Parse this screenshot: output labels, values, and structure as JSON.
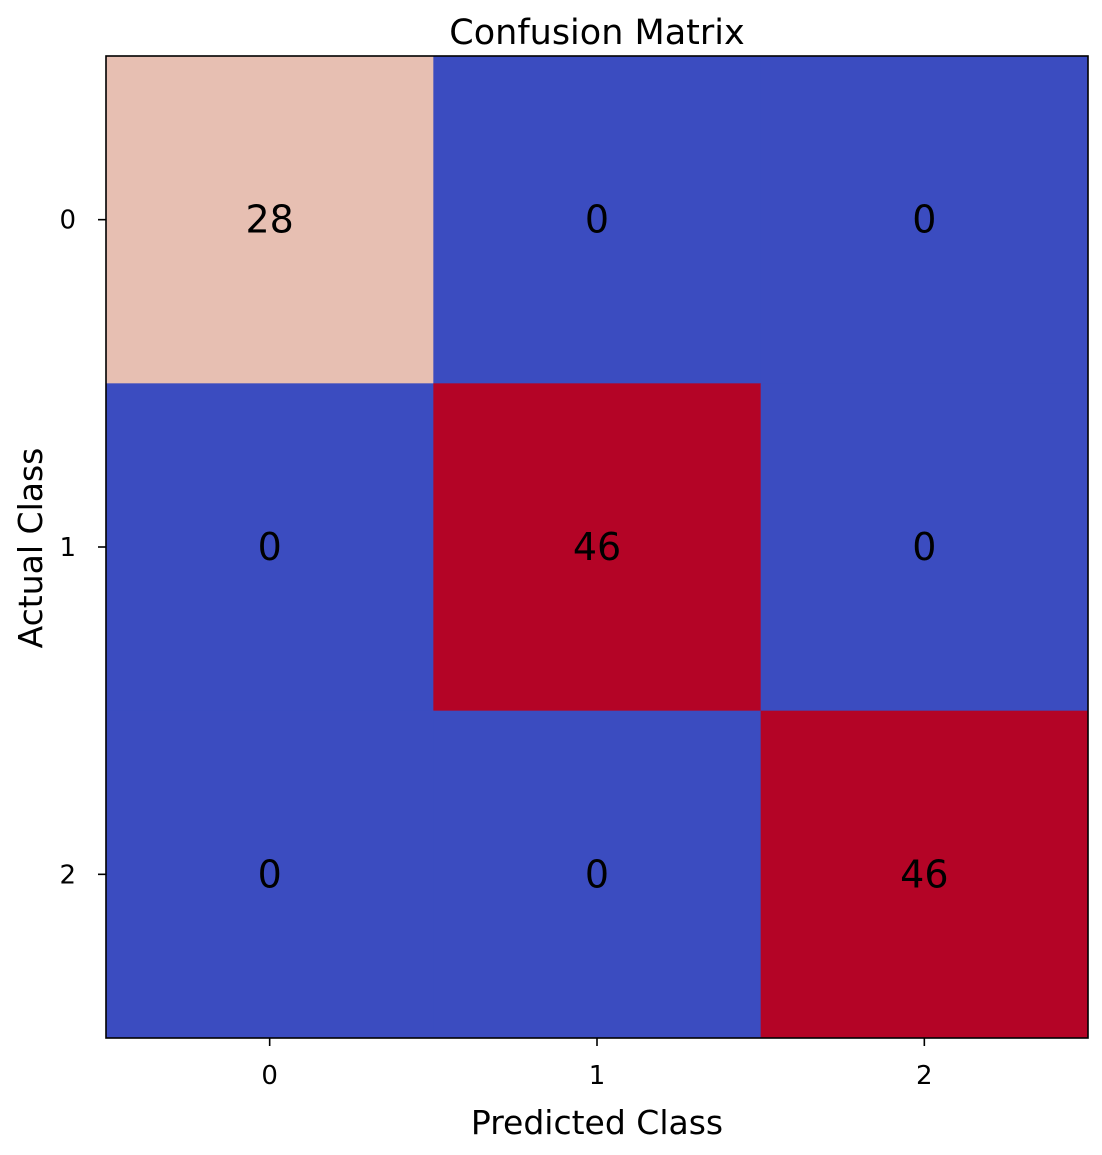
{
  "chart_data": {
    "type": "heatmap",
    "title": "Confusion Matrix",
    "xlabel": "Predicted Class",
    "ylabel": "Actual Class",
    "x_categories": [
      "0",
      "1",
      "2"
    ],
    "y_categories": [
      "0",
      "1",
      "2"
    ],
    "matrix": [
      [
        28,
        0,
        0
      ],
      [
        0,
        46,
        0
      ],
      [
        0,
        0,
        46
      ]
    ],
    "colormap": "coolwarm",
    "color_range": [
      0,
      46
    ],
    "grid": false,
    "legend": "none"
  }
}
